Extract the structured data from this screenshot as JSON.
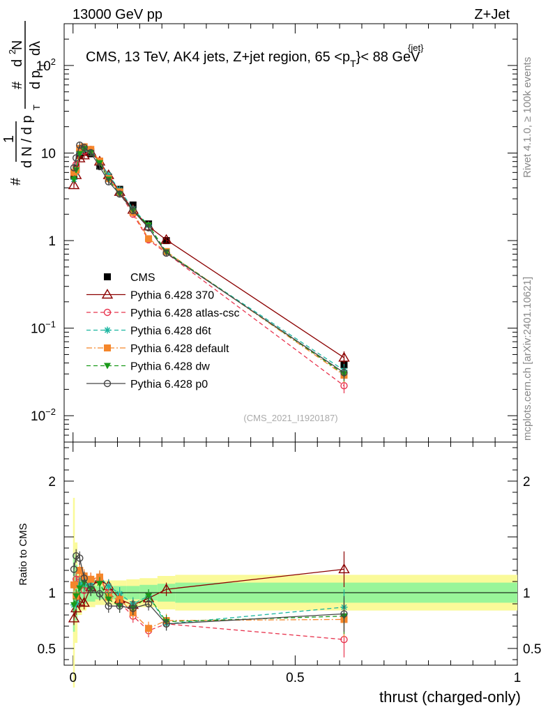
{
  "header": {
    "left": "13000 GeV pp",
    "right": "Z+Jet",
    "plot_title": "CMS, 13 TeV, AK4 jets, Z+jet region, 65 <p",
    "plot_title_sup": "{jet}",
    "plot_title_sub": "T",
    "plot_title_end": "}< 88 GeV",
    "analysis_id": "(CMS_2021_I1920187)"
  },
  "side_labels": {
    "rivet": "Rivet 4.1.0, ≥ 100k events",
    "mcplots": "mcplots.cern.ch [arXiv:2401.10621]"
  },
  "colors": {
    "cms": "#000000",
    "p370": "#8b0000",
    "atlas": "#e8344e",
    "d6t": "#1ab5a0",
    "default": "#f5862b",
    "dw": "#1a9a1a",
    "p0": "#444444",
    "band_inner": "#99f599",
    "band_outer": "#fafa99"
  },
  "chart_data": [
    {
      "type": "scatter",
      "scale": "log",
      "ylabel_parts": [
        "#",
        "1",
        "d N / d p",
        "T",
        "#",
        "d",
        "p",
        "T",
        "dλ",
        "d",
        "2",
        "N"
      ],
      "ylim": [
        0.005,
        300
      ],
      "xlim": [
        -0.02,
        1.0
      ],
      "yticks": [
        {
          "value": 0.01,
          "base": "10",
          "exp": "−2"
        },
        {
          "value": 0.1,
          "base": "10",
          "exp": "−1"
        },
        {
          "value": 1,
          "label": "1"
        },
        {
          "value": 10,
          "label": "10"
        },
        {
          "value": 100,
          "base": "10",
          "exp": "2"
        }
      ],
      "x": [
        0.002,
        0.007,
        0.015,
        0.025,
        0.04,
        0.06,
        0.08,
        0.105,
        0.135,
        0.17,
        0.21,
        0.61
      ],
      "series": [
        {
          "name": "CMS",
          "key": "cms",
          "marker": "square",
          "line": "none",
          "values": [
            5.6,
            6.6,
            9.4,
            10.3,
            9.8,
            7.1,
            5.3,
            3.85,
            2.55,
            1.55,
            1.0,
            0.038
          ]
        },
        {
          "name": "Pythia 6.428 370",
          "key": "p370",
          "marker": "triangle-open",
          "line": "solid",
          "values": [
            4.3,
            5.6,
            8.7,
            9.4,
            10.3,
            8.0,
            5.6,
            3.6,
            2.25,
            1.45,
            1.02,
            0.046
          ]
        },
        {
          "name": "Pythia 6.428 atlas-csc",
          "key": "atlas",
          "marker": "circle-open",
          "line": "dashed",
          "values": [
            6.0,
            7.4,
            10.5,
            10.5,
            11.0,
            8.0,
            5.3,
            3.5,
            2.0,
            1.02,
            0.72,
            0.022
          ]
        },
        {
          "name": "Pythia 6.428 d6t",
          "key": "d6t",
          "marker": "star",
          "line": "dashed",
          "values": [
            5.0,
            6.0,
            10.2,
            11.0,
            10.6,
            8.1,
            5.6,
            3.8,
            2.3,
            1.5,
            0.72,
            0.033
          ]
        },
        {
          "name": "Pythia 6.428 default",
          "key": "default",
          "marker": "square",
          "line": "dashdot",
          "values": [
            6.0,
            6.4,
            11.3,
            11.8,
            11.0,
            8.1,
            5.1,
            3.6,
            2.1,
            1.05,
            0.75,
            0.029
          ]
        },
        {
          "name": "Pythia 6.428 dw",
          "key": "dw",
          "marker": "triangle-down",
          "line": "dashed",
          "values": [
            5.0,
            6.4,
            9.8,
            11.2,
            10.1,
            7.7,
            5.0,
            3.4,
            2.2,
            1.5,
            0.74,
            0.03
          ]
        },
        {
          "name": "Pythia 6.428 p0",
          "key": "p0",
          "marker": "circle-open",
          "line": "solid",
          "values": [
            6.8,
            8.8,
            12.3,
            11.6,
            10.1,
            7.0,
            4.7,
            3.4,
            2.2,
            1.4,
            0.72,
            0.031
          ]
        }
      ]
    },
    {
      "type": "line",
      "ylabel": "Ratio to CMS",
      "xlabel": "thrust (charged-only)",
      "xlim": [
        -0.02,
        1.0
      ],
      "ylim": [
        0.35,
        2.35
      ],
      "xticks": [
        0,
        0.5,
        1
      ],
      "xtick_labels": [
        "0",
        "0.5",
        "1"
      ],
      "yticks": [
        0.5,
        1,
        2
      ],
      "ytick_labels": [
        "0.5",
        "1",
        "2"
      ],
      "x": [
        0.002,
        0.007,
        0.015,
        0.025,
        0.04,
        0.06,
        0.08,
        0.105,
        0.135,
        0.17,
        0.21,
        0.61
      ],
      "band_edges": [
        0,
        0.004,
        0.01,
        0.02,
        0.03,
        0.05,
        0.07,
        0.09,
        0.12,
        0.15,
        0.19,
        0.23,
        1.0
      ],
      "band_inner": [
        0.35,
        0.25,
        0.13,
        0.1,
        0.08,
        0.06,
        0.06,
        0.06,
        0.06,
        0.07,
        0.08,
        0.09
      ],
      "band_outer": [
        0.85,
        0.45,
        0.2,
        0.16,
        0.13,
        0.11,
        0.11,
        0.11,
        0.12,
        0.13,
        0.15,
        0.16
      ],
      "series": [
        {
          "name": "Pythia 6.428 370",
          "key": "p370",
          "values": [
            0.77,
            0.86,
            0.92,
            0.91,
            1.05,
            1.12,
            1.06,
            0.94,
            0.89,
            0.95,
            1.03,
            1.21
          ]
        },
        {
          "name": "Pythia 6.428 atlas-csc",
          "key": "atlas",
          "values": [
            1.07,
            1.12,
            1.12,
            1.02,
            1.12,
            1.13,
            1.0,
            0.91,
            0.79,
            0.66,
            0.72,
            0.58
          ]
        },
        {
          "name": "Pythia 6.428 d6t",
          "key": "d6t",
          "values": [
            0.89,
            0.91,
            1.08,
            1.07,
            1.08,
            1.14,
            1.06,
            0.99,
            0.9,
            0.97,
            0.72,
            0.87
          ]
        },
        {
          "name": "Pythia 6.428 default",
          "key": "default",
          "values": [
            1.07,
            0.97,
            1.2,
            1.15,
            1.12,
            1.14,
            0.96,
            0.94,
            0.82,
            0.68,
            0.75,
            0.76
          ]
        },
        {
          "name": "Pythia 6.428 dw",
          "key": "dw",
          "values": [
            0.89,
            0.97,
            1.04,
            1.09,
            1.03,
            1.08,
            0.94,
            0.88,
            0.86,
            0.97,
            0.74,
            0.79
          ]
        },
        {
          "name": "Pythia 6.428 p0",
          "key": "p0",
          "values": [
            1.21,
            1.33,
            1.31,
            1.13,
            1.03,
            0.99,
            0.88,
            0.88,
            0.86,
            0.9,
            0.72,
            0.81
          ]
        }
      ]
    }
  ]
}
